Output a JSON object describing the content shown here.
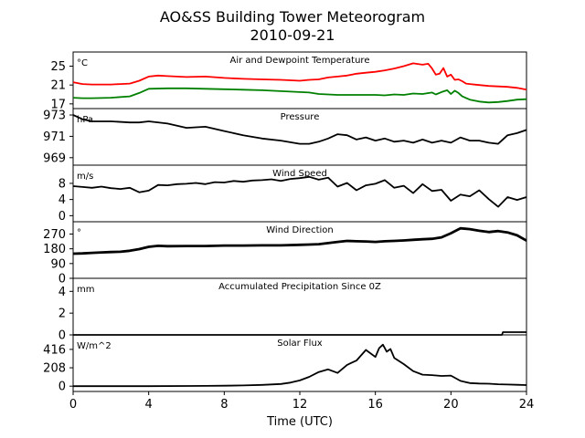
{
  "title": "AO&SS Building Tower Meteorogram",
  "subtitle": "2010-09-21",
  "xlabel": "Time (UTC)",
  "chart_data": [
    {
      "type": "line",
      "title": "Air and Dewpoint Temperature",
      "unit": "°C",
      "ylim": [
        16,
        28
      ],
      "yticks": [
        17,
        21,
        25
      ],
      "series": [
        {
          "color": "#ff0000",
          "x": [
            0,
            0.5,
            1,
            1.5,
            2,
            2.5,
            3,
            3.5,
            4,
            4.5,
            5,
            6,
            7,
            8,
            9,
            10,
            11,
            11.5,
            12,
            12.5,
            13,
            13.5,
            14,
            14.5,
            15,
            15.5,
            16,
            16.5,
            17,
            17.5,
            18,
            18.5,
            18.8,
            19,
            19.2,
            19.4,
            19.6,
            19.8,
            20,
            20.2,
            20.4,
            20.6,
            20.8,
            21,
            21.5,
            22,
            22.5,
            23,
            23.5,
            24
          ],
          "values": [
            21.6,
            21.2,
            21.1,
            21.1,
            21.1,
            21.2,
            21.3,
            21.9,
            22.8,
            23.0,
            22.9,
            22.7,
            22.8,
            22.5,
            22.3,
            22.2,
            22.1,
            22.0,
            21.9,
            22.1,
            22.2,
            22.6,
            22.8,
            23.0,
            23.4,
            23.6,
            23.8,
            24.1,
            24.5,
            25.0,
            25.6,
            25.3,
            25.5,
            24.5,
            23.2,
            23.4,
            24.6,
            22.8,
            23.2,
            22.1,
            22.2,
            21.8,
            21.3,
            21.2,
            21.0,
            20.8,
            20.7,
            20.6,
            20.4,
            20.0
          ]
        },
        {
          "color": "#008000",
          "x": [
            0,
            0.5,
            1,
            2,
            3,
            3.5,
            4,
            5,
            6,
            7,
            8,
            9,
            10,
            11,
            12,
            12.5,
            13,
            14,
            15,
            16,
            16.5,
            17,
            17.5,
            18,
            18.5,
            19,
            19.2,
            19.5,
            19.8,
            20,
            20.2,
            20.4,
            20.6,
            21,
            21.5,
            22,
            22.5,
            23,
            23.5,
            24
          ],
          "values": [
            18.3,
            18.2,
            18.2,
            18.3,
            18.6,
            19.3,
            20.2,
            20.3,
            20.3,
            20.2,
            20.1,
            20.0,
            19.9,
            19.7,
            19.5,
            19.4,
            19.1,
            18.9,
            18.9,
            18.9,
            18.8,
            19.0,
            18.9,
            19.2,
            19.1,
            19.4,
            19.0,
            19.5,
            19.9,
            19.1,
            19.8,
            19.3,
            18.6,
            17.9,
            17.5,
            17.3,
            17.4,
            17.6,
            17.9,
            18.0
          ]
        }
      ]
    },
    {
      "type": "line",
      "title": "Pressure",
      "unit": "hPa",
      "ylim": [
        968.3,
        973.6
      ],
      "yticks": [
        969,
        971,
        973
      ],
      "series": [
        {
          "color": "#000000",
          "x": [
            0,
            0.5,
            1,
            2,
            3,
            3.5,
            4,
            5,
            6,
            7,
            8,
            9,
            10,
            11,
            12,
            12.5,
            13,
            13.5,
            14,
            14.5,
            15,
            15.5,
            16,
            16.5,
            17,
            17.5,
            18,
            18.5,
            19,
            19.5,
            20,
            20.5,
            21,
            21.5,
            22,
            22.5,
            23,
            23.5,
            24
          ],
          "values": [
            973.0,
            972.6,
            972.4,
            972.4,
            972.3,
            972.3,
            972.4,
            972.2,
            971.8,
            971.9,
            971.5,
            971.1,
            970.8,
            970.6,
            970.3,
            970.3,
            970.5,
            970.8,
            971.2,
            971.1,
            970.7,
            970.9,
            970.6,
            970.8,
            970.5,
            970.6,
            970.4,
            970.7,
            970.4,
            970.6,
            970.4,
            970.9,
            970.6,
            970.6,
            970.4,
            970.3,
            971.1,
            971.3,
            971.6
          ]
        }
      ]
    },
    {
      "type": "line",
      "title": "Wind Speed",
      "unit": "m/s",
      "ylim": [
        -1.5,
        12.5
      ],
      "yticks": [
        0,
        4,
        8
      ],
      "series": [
        {
          "color": "#000000",
          "x": [
            0,
            0.5,
            1,
            1.5,
            2,
            2.5,
            3,
            3.5,
            4,
            4.5,
            5,
            5.5,
            6,
            6.5,
            7,
            7.5,
            8,
            8.5,
            9,
            9.5,
            10,
            10.5,
            11,
            11.5,
            12,
            12.5,
            13,
            13.5,
            14,
            14.5,
            15,
            15.5,
            16,
            16.5,
            17,
            17.5,
            18,
            18.5,
            19,
            19.5,
            20,
            20.5,
            21,
            21.5,
            22,
            22.5,
            23,
            23.5,
            24
          ],
          "values": [
            7.3,
            7.1,
            6.9,
            7.2,
            6.8,
            6.6,
            6.9,
            5.8,
            6.2,
            7.6,
            7.5,
            7.8,
            7.9,
            8.1,
            7.8,
            8.3,
            8.2,
            8.6,
            8.4,
            8.7,
            8.8,
            9.0,
            8.6,
            9.1,
            9.3,
            9.6,
            8.9,
            9.4,
            7.2,
            8.1,
            6.3,
            7.5,
            7.9,
            8.8,
            6.9,
            7.4,
            5.6,
            7.8,
            6.1,
            6.4,
            3.7,
            5.2,
            4.8,
            6.3,
            4.1,
            2.2,
            4.6,
            3.9,
            4.6
          ]
        }
      ]
    },
    {
      "type": "line",
      "title": "Wind Direction",
      "unit": "°",
      "ylim": [
        0,
        345
      ],
      "yticks": [
        0,
        90,
        180,
        270
      ],
      "series": [
        {
          "color": "#000000",
          "x": [
            0,
            0.5,
            1,
            1.5,
            2,
            2.5,
            3,
            3.5,
            4,
            4.5,
            5,
            6,
            7,
            8,
            9,
            10,
            11,
            12,
            12.5,
            13,
            13.5,
            14,
            14.5,
            15,
            15.5,
            16,
            16.5,
            17,
            17.5,
            18,
            18.5,
            19,
            19.5,
            20,
            20.5,
            21,
            21.5,
            22,
            22.5,
            23,
            23.5,
            24
          ],
          "values": [
            150,
            152,
            155,
            158,
            160,
            162,
            168,
            178,
            192,
            198,
            196,
            197,
            197,
            200,
            200,
            201,
            201,
            204,
            206,
            208,
            215,
            222,
            228,
            226,
            225,
            222,
            226,
            228,
            231,
            235,
            238,
            241,
            250,
            275,
            305,
            300,
            290,
            282,
            288,
            280,
            262,
            230
          ]
        }
      ]
    },
    {
      "type": "area",
      "title": "Accumulated Precipitation Since 0Z",
      "unit": "mm",
      "ylim": [
        0,
        5.2
      ],
      "yticks": [
        0,
        2,
        4
      ],
      "series": [
        {
          "color": "#000000",
          "x": [
            0,
            22.7,
            22.75,
            24
          ],
          "values": [
            0,
            0,
            0.25,
            0.25
          ]
        }
      ]
    },
    {
      "type": "line",
      "title": "Solar Flux",
      "unit": "W/m^2",
      "ylim": [
        -60,
        580
      ],
      "yticks": [
        0,
        208,
        416
      ],
      "series": [
        {
          "color": "#000000",
          "x": [
            0,
            2,
            4,
            6,
            7,
            8,
            9,
            10,
            11,
            11.5,
            12,
            12.5,
            13,
            13.5,
            14,
            14.5,
            15,
            15.5,
            16,
            16.2,
            16.4,
            16.6,
            16.8,
            17,
            17.5,
            18,
            18.5,
            19,
            19.5,
            20,
            20.5,
            21,
            21.5,
            22,
            22.5,
            23,
            23.5,
            24
          ],
          "values": [
            0,
            0,
            0,
            2,
            3,
            5,
            8,
            14,
            25,
            40,
            65,
            105,
            160,
            190,
            150,
            240,
            290,
            410,
            330,
            430,
            470,
            390,
            420,
            320,
            250,
            170,
            130,
            125,
            115,
            120,
            60,
            35,
            30,
            28,
            22,
            18,
            15,
            12
          ]
        }
      ]
    }
  ],
  "xaxis": {
    "xlim": [
      0,
      24
    ],
    "ticks": [
      "0",
      "4",
      "8",
      "12",
      "16",
      "20",
      "24"
    ]
  }
}
